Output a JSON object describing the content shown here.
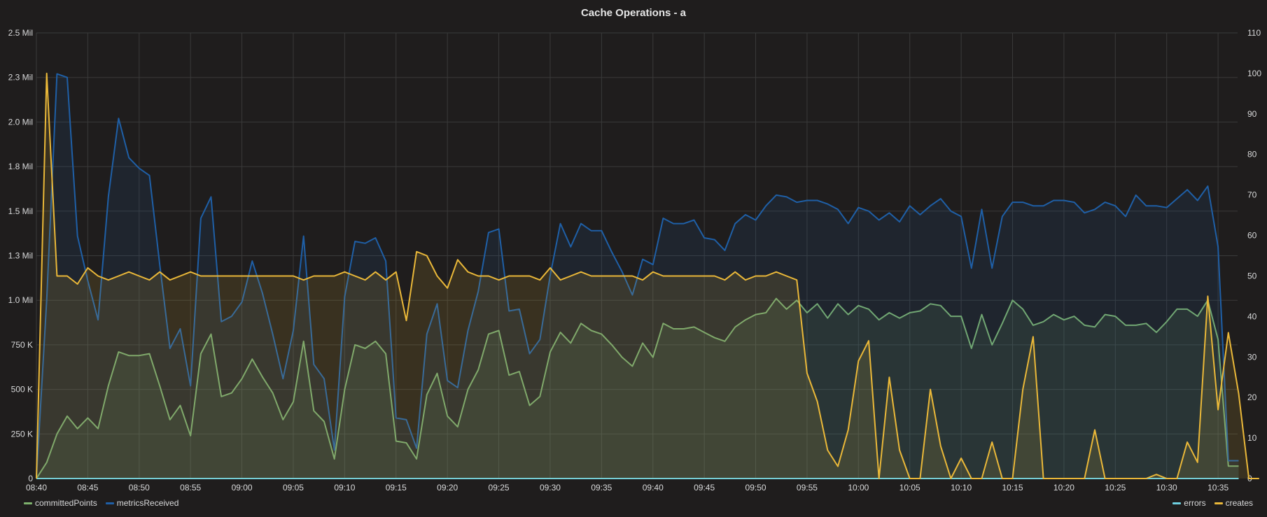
{
  "chart_data": {
    "type": "line",
    "title": "Cache Operations - a",
    "x_ticks": [
      "08:40",
      "08:45",
      "08:50",
      "08:55",
      "09:00",
      "09:05",
      "09:10",
      "09:15",
      "09:20",
      "09:25",
      "09:30",
      "09:35",
      "09:40",
      "09:45",
      "09:50",
      "09:55",
      "10:00",
      "10:05",
      "10:10",
      "10:15",
      "10:20",
      "10:25",
      "10:30",
      "10:35"
    ],
    "x_start_min": 0,
    "x_end_min": 116.9,
    "x_step_min": 1,
    "left_axis": {
      "ticks": [
        "0",
        "250 K",
        "500 K",
        "750 K",
        "1.0 Mil",
        "1.3 Mil",
        "1.5 Mil",
        "1.8 Mil",
        "2.0 Mil",
        "2.3 Mil",
        "2.5 Mil"
      ],
      "ylim": [
        0,
        2500000
      ]
    },
    "right_axis": {
      "ticks": [
        "0",
        "10",
        "20",
        "30",
        "40",
        "50",
        "60",
        "70",
        "80",
        "90",
        "100",
        "110"
      ],
      "ylim": [
        0,
        110
      ]
    },
    "grid": true,
    "legend_left": [
      "committedPoints",
      "metricsReceived"
    ],
    "legend_right": [
      "errors",
      "creates"
    ],
    "series": [
      {
        "name": "committedPoints",
        "axis": "left",
        "color": "#7eb26d",
        "fill": true,
        "values": [
          0,
          90000,
          250000,
          350000,
          280000,
          340000,
          280000,
          520000,
          710000,
          690000,
          690000,
          700000,
          520000,
          330000,
          410000,
          240000,
          700000,
          810000,
          460000,
          480000,
          560000,
          670000,
          570000,
          480000,
          330000,
          430000,
          770000,
          380000,
          320000,
          110000,
          500000,
          750000,
          730000,
          770000,
          700000,
          210000,
          200000,
          110000,
          470000,
          590000,
          350000,
          290000,
          500000,
          610000,
          810000,
          830000,
          580000,
          600000,
          410000,
          460000,
          710000,
          820000,
          760000,
          870000,
          830000,
          810000,
          750000,
          680000,
          630000,
          760000,
          680000,
          870000,
          840000,
          840000,
          850000,
          820000,
          790000,
          770000,
          850000,
          890000,
          920000,
          930000,
          1010000,
          950000,
          1000000,
          930000,
          980000,
          900000,
          980000,
          920000,
          970000,
          950000,
          890000,
          930000,
          900000,
          930000,
          940000,
          980000,
          970000,
          910000,
          910000,
          730000,
          920000,
          750000,
          870000,
          1000000,
          950000,
          860000,
          880000,
          920000,
          890000,
          910000,
          860000,
          850000,
          920000,
          910000,
          860000,
          860000,
          870000,
          820000,
          880000,
          950000,
          950000,
          910000,
          1000000,
          780000,
          70000,
          70000
        ]
      },
      {
        "name": "metricsReceived",
        "axis": "left",
        "color": "#1f5fa6",
        "fill": true,
        "values": [
          0,
          1000000,
          2270000,
          2250000,
          1360000,
          1110000,
          890000,
          1580000,
          2020000,
          1800000,
          1740000,
          1700000,
          1200000,
          730000,
          840000,
          520000,
          1460000,
          1580000,
          880000,
          910000,
          990000,
          1220000,
          1040000,
          810000,
          560000,
          830000,
          1360000,
          640000,
          560000,
          160000,
          1020000,
          1330000,
          1320000,
          1350000,
          1220000,
          340000,
          330000,
          170000,
          810000,
          980000,
          550000,
          510000,
          830000,
          1050000,
          1380000,
          1400000,
          940000,
          950000,
          700000,
          780000,
          1140000,
          1430000,
          1300000,
          1430000,
          1390000,
          1390000,
          1270000,
          1160000,
          1030000,
          1230000,
          1200000,
          1460000,
          1430000,
          1430000,
          1450000,
          1350000,
          1340000,
          1280000,
          1430000,
          1480000,
          1450000,
          1530000,
          1590000,
          1580000,
          1550000,
          1560000,
          1560000,
          1540000,
          1510000,
          1430000,
          1520000,
          1500000,
          1450000,
          1490000,
          1440000,
          1530000,
          1480000,
          1530000,
          1570000,
          1500000,
          1470000,
          1180000,
          1510000,
          1180000,
          1470000,
          1550000,
          1550000,
          1530000,
          1530000,
          1560000,
          1560000,
          1550000,
          1490000,
          1510000,
          1550000,
          1530000,
          1470000,
          1590000,
          1530000,
          1530000,
          1520000,
          1570000,
          1620000,
          1560000,
          1640000,
          1300000,
          100000,
          100000
        ]
      },
      {
        "name": "errors",
        "axis": "right",
        "color": "#6ed0e0",
        "fill": false,
        "values": [
          0,
          0,
          0,
          0,
          0,
          0,
          0,
          0,
          0,
          0,
          0,
          0,
          0,
          0,
          0,
          0,
          0,
          0,
          0,
          0,
          0,
          0,
          0,
          0,
          0,
          0,
          0,
          0,
          0,
          0,
          0,
          0,
          0,
          0,
          0,
          0,
          0,
          0,
          0,
          0,
          0,
          0,
          0,
          0,
          0,
          0,
          0,
          0,
          0,
          0,
          0,
          0,
          0,
          0,
          0,
          0,
          0,
          0,
          0,
          0,
          0,
          0,
          0,
          0,
          0,
          0,
          0,
          0,
          0,
          0,
          0,
          0,
          0,
          0,
          0,
          0,
          0,
          0,
          0,
          0,
          0,
          0,
          0,
          0,
          0,
          0,
          0,
          0,
          0,
          0,
          0,
          0,
          0,
          0,
          0,
          0,
          0,
          0,
          0,
          0,
          0,
          0,
          0,
          0,
          0,
          0,
          0,
          0,
          0,
          0,
          0,
          0,
          0,
          0,
          0,
          0,
          0,
          0
        ]
      },
      {
        "name": "creates",
        "axis": "right",
        "color": "#eab839",
        "fill": true,
        "values": [
          0,
          100,
          50,
          50,
          48,
          52,
          50,
          49,
          50,
          51,
          50,
          49,
          51,
          49,
          50,
          51,
          50,
          50,
          50,
          50,
          50,
          50,
          50,
          50,
          50,
          50,
          49,
          50,
          50,
          50,
          51,
          50,
          49,
          51,
          49,
          51,
          39,
          56,
          55,
          50,
          47,
          54,
          51,
          50,
          50,
          49,
          50,
          50,
          50,
          49,
          52,
          49,
          50,
          51,
          50,
          50,
          50,
          50,
          50,
          49,
          51,
          50,
          50,
          50,
          50,
          50,
          50,
          49,
          51,
          49,
          50,
          50,
          51,
          50,
          49,
          26,
          19,
          7,
          3,
          12,
          29,
          34,
          0,
          25,
          7,
          0,
          0,
          22,
          8,
          0,
          5,
          0,
          0,
          9,
          0,
          0,
          22,
          35,
          0,
          0,
          0,
          0,
          0,
          12,
          0,
          0,
          0,
          0,
          0,
          1,
          0,
          0,
          9,
          4,
          45,
          17,
          36,
          21,
          0,
          0
        ]
      }
    ]
  }
}
